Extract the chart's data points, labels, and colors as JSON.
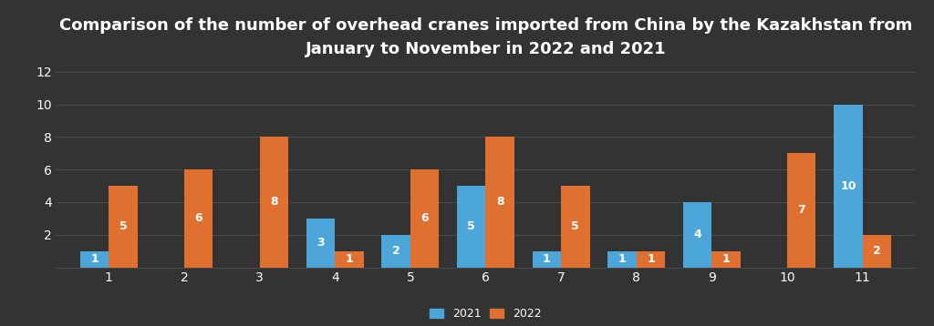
{
  "title": "Comparison of the number of overhead cranes imported from China by the Kazakhstan from\nJanuary to November in 2022 and 2021",
  "months": [
    1,
    2,
    3,
    4,
    5,
    6,
    7,
    8,
    9,
    10,
    11
  ],
  "values_2021": [
    1,
    0,
    0,
    3,
    2,
    5,
    1,
    1,
    4,
    0,
    10
  ],
  "values_2022": [
    5,
    6,
    8,
    1,
    6,
    8,
    5,
    1,
    1,
    7,
    2
  ],
  "color_2021": "#4da6d9",
  "color_2022": "#e07030",
  "background_color": "#333333",
  "axes_background": "#333333",
  "text_color": "#ffffff",
  "grid_color": "#4a4a4a",
  "ylim": [
    0,
    12
  ],
  "yticks": [
    2,
    4,
    6,
    8,
    10,
    12
  ],
  "legend_labels": [
    "2021",
    "2022"
  ],
  "bar_width": 0.38,
  "title_fontsize": 13,
  "label_fontsize": 9,
  "tick_fontsize": 10,
  "legend_fontsize": 9
}
